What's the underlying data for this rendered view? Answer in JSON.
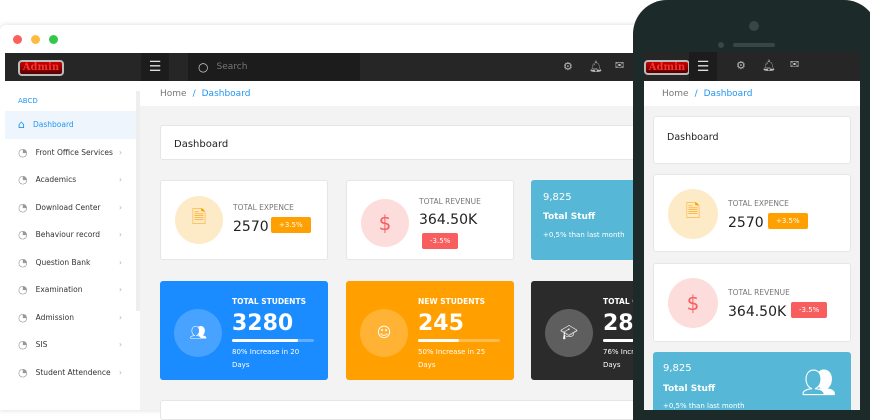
{
  "app": {
    "logo": "Admin",
    "search_placeholder": "Search"
  },
  "breadcrumb": {
    "home": "Home",
    "current": "Dashboard"
  },
  "sidebar": {
    "section": "ABCD",
    "items": [
      {
        "label": "Dashboard",
        "icon": "home-icon",
        "active": true
      },
      {
        "label": "Front Office Services",
        "icon": "pie-chart-icon"
      },
      {
        "label": "Academics",
        "icon": "pie-chart-icon"
      },
      {
        "label": "Download Center",
        "icon": "pie-chart-icon"
      },
      {
        "label": "Behaviour record",
        "icon": "pie-chart-icon"
      },
      {
        "label": "Question Bank",
        "icon": "pie-chart-icon"
      },
      {
        "label": "Examination",
        "icon": "pie-chart-icon"
      },
      {
        "label": "Admission",
        "icon": "pie-chart-icon"
      },
      {
        "label": "SIS",
        "icon": "pie-chart-icon"
      },
      {
        "label": "Student Attendence",
        "icon": "pie-chart-icon"
      }
    ]
  },
  "page_title": "Dashboard",
  "stats": {
    "expense": {
      "label": "TOTAL EXPENCE",
      "value": "2570",
      "change": "+3.5%",
      "color": "#ff9f00"
    },
    "revenue": {
      "label": "TOTAL REVENUE",
      "value": "364.50K",
      "change": "-3.5%",
      "color": "#f85e5e"
    },
    "staff": {
      "value": "9,825",
      "label": "Total Stuff",
      "note": "+0,5% than last month",
      "color": "#56b8d6"
    },
    "students": {
      "label": "TOTAL STUDENTS",
      "value": "3280",
      "progress": 80,
      "note": "80% Increase in 20 Days",
      "color": "#1a8cff"
    },
    "new_students": {
      "label": "NEW STUDENTS",
      "value": "245",
      "progress": 50,
      "note": "50% Increase in 25 Days",
      "color": "#ff9f00"
    },
    "courses": {
      "label": "TOTAL C",
      "value": "28",
      "progress": 76,
      "note": "76% Incre",
      "note2": "Days",
      "color": "#2b2b2b"
    }
  },
  "mobile": {
    "staff_note": "+0,5% than last month"
  }
}
